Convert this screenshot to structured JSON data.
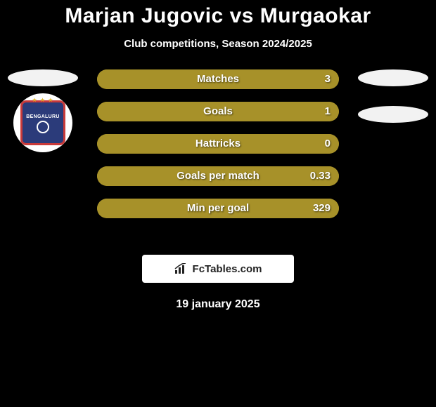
{
  "background_color": "#000000",
  "text_color": "#ffffff",
  "title": {
    "text": "Marjan Jugovic vs Murgaokar",
    "fontsize": 30,
    "color": "#ffffff"
  },
  "subtitle": {
    "text": "Club competitions, Season 2024/2025",
    "fontsize": 15,
    "color": "#ffffff"
  },
  "players": {
    "left": {
      "face_bg": "#f2f2f2",
      "club_circle_bg": "#ffffff",
      "club_inner_bg": "#2b3b7a",
      "club_border": "#c93a3a",
      "club_name": "BENGALURU",
      "club_name_color": "#ffffff",
      "club_stars": "★ ★ ★",
      "club_stars_color": "#e0b62b",
      "club_ball_border": "#ffffff",
      "show_club": true
    },
    "right": {
      "face_bg": "#f2f2f2",
      "face2_bg": "#f2f2f2",
      "show_club": false
    }
  },
  "bars": {
    "track_bg": "#a79129",
    "fill_left": "#a79129",
    "fill_right": "#a79129",
    "label_color": "#ffffff",
    "value_color": "#ffffff",
    "label_fontsize": 15,
    "value_fontsize": 15,
    "stats": [
      {
        "label": "Matches",
        "left": "",
        "right": "3",
        "left_pct": 0,
        "right_pct": 100
      },
      {
        "label": "Goals",
        "left": "",
        "right": "1",
        "left_pct": 0,
        "right_pct": 100
      },
      {
        "label": "Hattricks",
        "left": "",
        "right": "0",
        "left_pct": 0,
        "right_pct": 100
      },
      {
        "label": "Goals per match",
        "left": "",
        "right": "0.33",
        "left_pct": 0,
        "right_pct": 100
      },
      {
        "label": "Min per goal",
        "left": "",
        "right": "329",
        "left_pct": 0,
        "right_pct": 100
      }
    ]
  },
  "attribution": {
    "bg": "#ffffff",
    "text": "FcTables.com",
    "text_color": "#222222",
    "fontsize": 15,
    "icon_color": "#222222"
  },
  "date": {
    "text": "19 january 2025",
    "fontsize": 16,
    "color": "#ffffff"
  }
}
